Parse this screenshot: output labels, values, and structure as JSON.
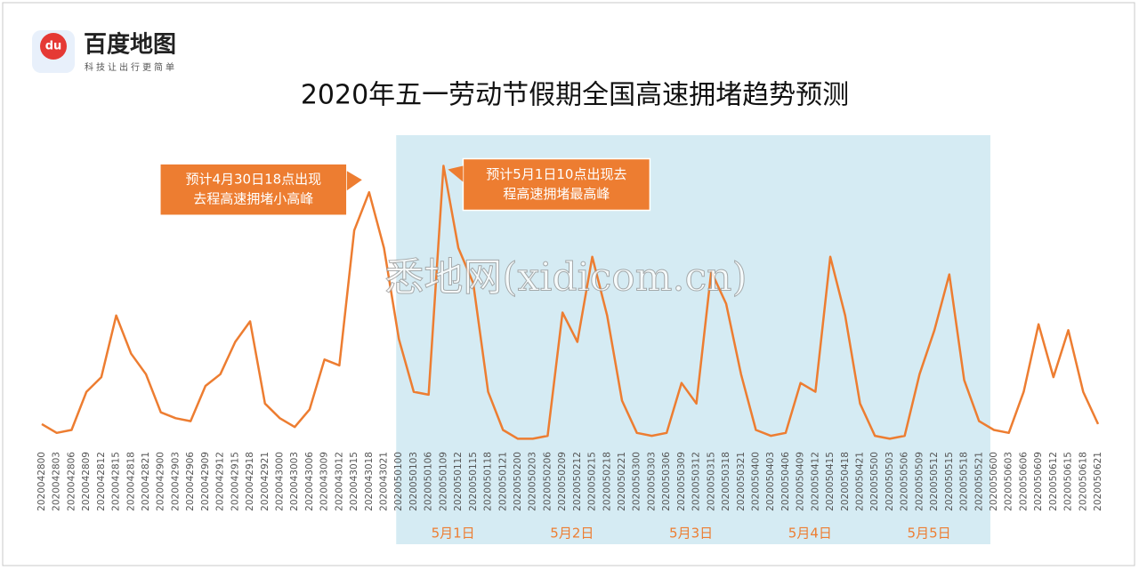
{
  "logo": {
    "name": "百度地图",
    "slogan": "科技让出行更简单",
    "icon": "du"
  },
  "watermark": "悉地网(xidicom.cn)",
  "chart_data": {
    "type": "line",
    "title": "2020年五一劳动节假期全国高速拥堵趋势预测",
    "categories": [
      "2020042800",
      "2020042803",
      "2020042806",
      "2020042809",
      "2020042812",
      "2020042815",
      "2020042818",
      "2020042821",
      "2020042900",
      "2020042903",
      "2020042906",
      "2020042909",
      "2020042912",
      "2020042915",
      "2020042918",
      "2020042921",
      "2020043000",
      "2020043003",
      "2020043006",
      "2020043009",
      "2020043012",
      "2020043015",
      "2020043018",
      "2020043021",
      "2020050100",
      "2020050103",
      "2020050106",
      "2020050109",
      "2020050112",
      "2020050115",
      "2020050118",
      "2020050121",
      "2020050200",
      "2020050203",
      "2020050206",
      "2020050209",
      "2020050212",
      "2020050215",
      "2020050218",
      "2020050221",
      "2020050300",
      "2020050303",
      "2020050306",
      "2020050309",
      "2020050312",
      "2020050315",
      "2020050318",
      "2020050321",
      "2020050400",
      "2020050403",
      "2020050406",
      "2020050409",
      "2020050412",
      "2020050415",
      "2020050418",
      "2020050421",
      "2020050500",
      "2020050503",
      "2020050506",
      "2020050509",
      "2020050512",
      "2020050515",
      "2020050518",
      "2020050521",
      "2020050600",
      "2020050603",
      "2020050606",
      "2020050609",
      "2020050612",
      "2020050615",
      "2020050618",
      "2020050621"
    ],
    "series": [
      {
        "name": "拥堵趋势",
        "color": "#ed7d31",
        "values": [
          7,
          4,
          5,
          18,
          23,
          44,
          31,
          24,
          11,
          9,
          8,
          20,
          24,
          35,
          42,
          14,
          9,
          6,
          12,
          29,
          27,
          73,
          86,
          67,
          36,
          18,
          17,
          95,
          67,
          55,
          18,
          5,
          2,
          2,
          3,
          45,
          35,
          64,
          44,
          15,
          4,
          3,
          4,
          21,
          14,
          59,
          48,
          24,
          5,
          3,
          4,
          21,
          18,
          64,
          44,
          14,
          3,
          2,
          3,
          24,
          39,
          58,
          22,
          8,
          5,
          4,
          18,
          41,
          23,
          39,
          18,
          7
        ]
      }
    ],
    "ylim": [
      0,
      100
    ],
    "highlight_label": [
      "5月1日",
      "5月2日",
      "5月3日",
      "5月4日",
      "5月5日"
    ],
    "annotations": [
      {
        "text": [
          "预计4月30日18点出现",
          "去程高速拥堵小高峰"
        ],
        "index": 22
      },
      {
        "text": [
          "预计5月1日10点出现去",
          "程高速拥堵最高峰"
        ],
        "index": 27
      }
    ]
  }
}
